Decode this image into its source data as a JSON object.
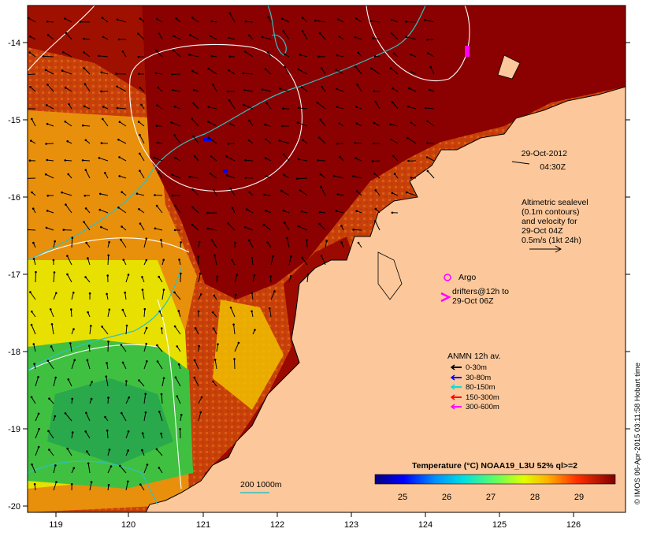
{
  "map": {
    "lon_ticks": [
      "119",
      "120",
      "121",
      "122",
      "123",
      "124",
      "125",
      "126"
    ],
    "lat_ticks": [
      "-14",
      "-15",
      "-16",
      "-17",
      "-18",
      "-19",
      "-20"
    ],
    "timestamp": {
      "date": "29-Oct-2012",
      "time": "04:30Z"
    },
    "altimetry_note": [
      "Altimetric sealevel",
      "(0.1m contours)",
      "and velocity for",
      "29-Oct 04Z",
      "0.5m/s (1kt 24h)"
    ],
    "argo_label": "Argo",
    "drifters_label": [
      "drifters@12h to",
      "29-Oct 06Z"
    ],
    "anmn": {
      "title": "ANMN 12h av.",
      "items": [
        {
          "label": "0-30m",
          "color": "#000000"
        },
        {
          "label": "30-80m",
          "color": "#0000ff"
        },
        {
          "label": "80-150m",
          "color": "#00e0e0"
        },
        {
          "label": "150-300m",
          "color": "#ff0000"
        },
        {
          "label": "300-600m",
          "color": "#ff00ff"
        }
      ]
    },
    "isobath_label": "200  1000m",
    "colorbar": {
      "title": "Temperature (°C) NOAA19_L3U 52% ql>=2",
      "ticks": [
        "25",
        "26",
        "27",
        "28",
        "29"
      ]
    },
    "credit": "© IMOS 06-Apr-2015 03:11:58 Hobart time",
    "colors": {
      "land": "#fcc89b",
      "hot": "#8b0000",
      "warm": "#d05010",
      "cool": "#3cc040"
    }
  }
}
